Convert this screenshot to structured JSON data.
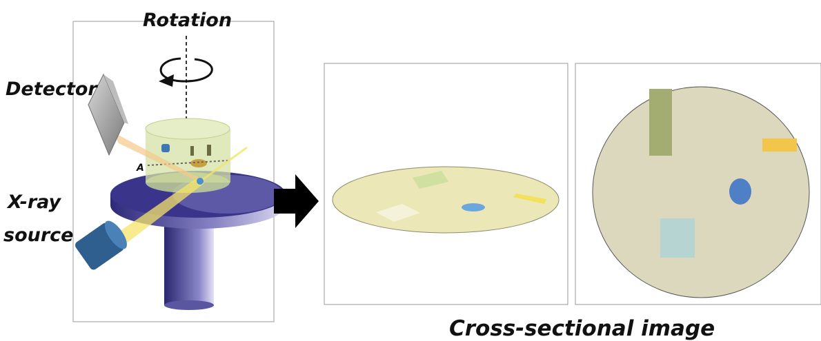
{
  "labels": {
    "rotation": "Rotation",
    "detector": "Detector",
    "xray_line1": "X-ray",
    "xray_line2": "source",
    "point_a": "A",
    "cross_section": "Cross-sectional image"
  },
  "colors": {
    "panel_border": "#999999",
    "stage_base": "#3b3b8c",
    "stage_light": "#b7b3e0",
    "sample_cylinder": "#d6e2a6",
    "detector": "#9a9a9a",
    "source": "#2f5f8f",
    "beam": "#f5e46a",
    "ellipse_fill": "#ece7b7",
    "circle_fill": "#dcd8bd",
    "green_rect": "#a3ad72",
    "yellow_rect": "#f2c64a",
    "blue_dot": "#4f7fc4",
    "teal_square": "#b6d4d2",
    "arrow": "#000000"
  }
}
